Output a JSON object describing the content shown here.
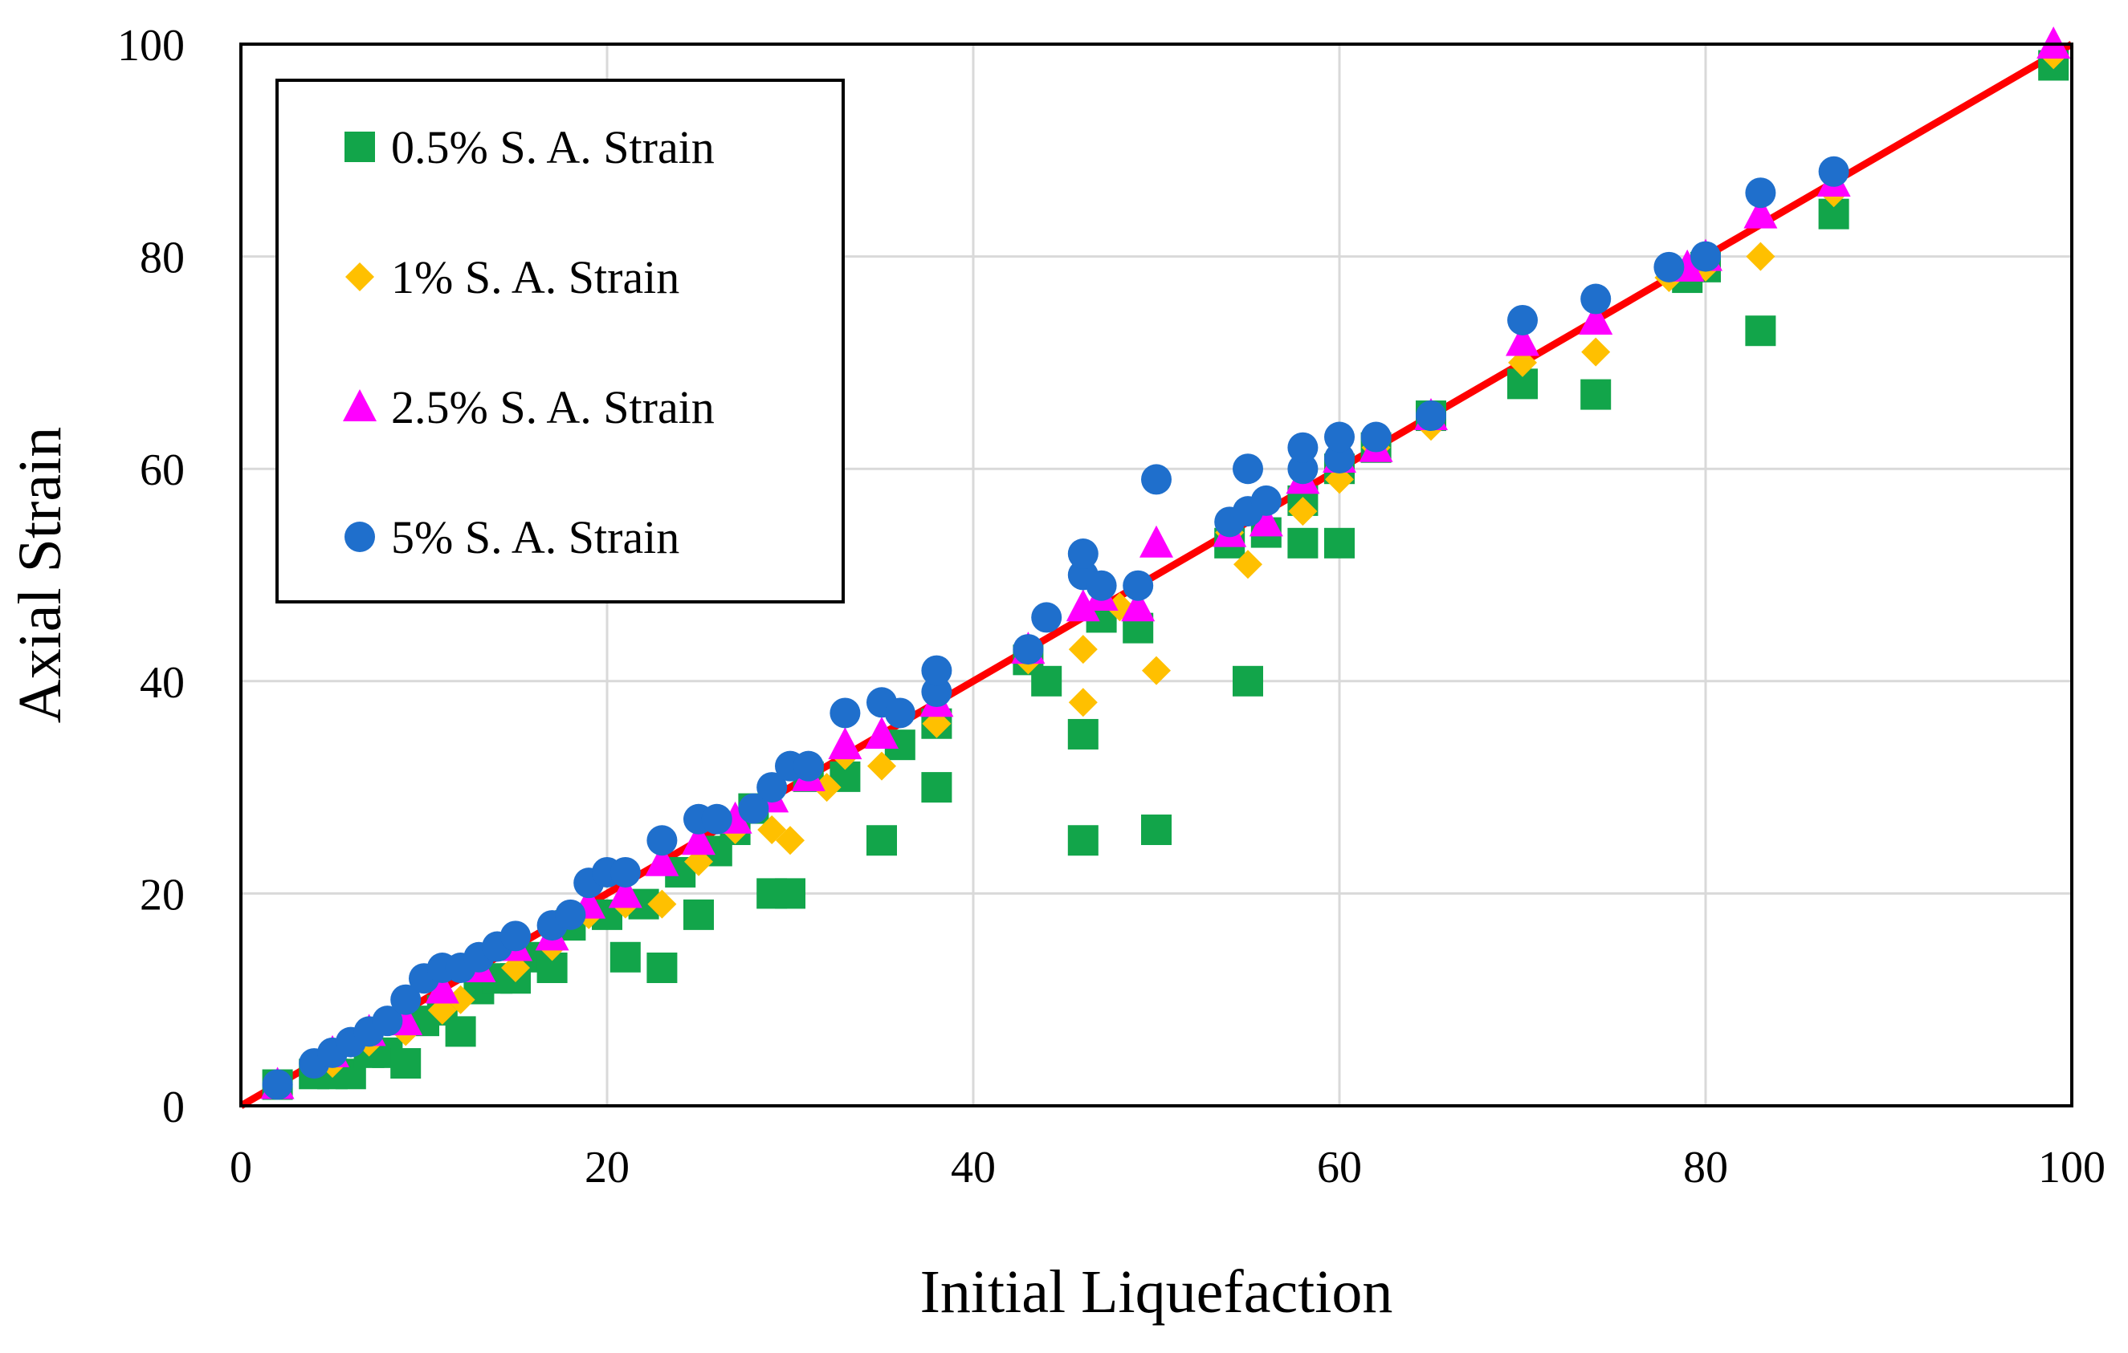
{
  "chart_data": {
    "type": "scatter",
    "title": "",
    "xlabel": "Initial Liquefaction",
    "ylabel": "Axial Strain",
    "xlim": [
      0,
      100
    ],
    "ylim": [
      0,
      100
    ],
    "x_ticks": [
      "0",
      "20",
      "40",
      "60",
      "80",
      "100"
    ],
    "y_ticks": [
      "0",
      "20",
      "40",
      "60",
      "80",
      "100"
    ],
    "grid": true,
    "legend_position": "top-left",
    "reference_line": {
      "name": "1:1 line",
      "x": [
        0,
        100
      ],
      "y": [
        0,
        100
      ],
      "color": "#ff0000"
    },
    "series": [
      {
        "name": "0.5% S. A. Strain",
        "marker": "square",
        "color": "#12a54a",
        "points": [
          [
            2,
            2
          ],
          [
            4,
            3
          ],
          [
            5,
            3
          ],
          [
            6,
            3
          ],
          [
            7,
            5
          ],
          [
            8,
            5
          ],
          [
            9,
            4
          ],
          [
            10,
            8
          ],
          [
            11,
            9
          ],
          [
            12,
            7
          ],
          [
            13,
            11
          ],
          [
            14,
            12
          ],
          [
            15,
            12
          ],
          [
            16,
            14
          ],
          [
            17,
            13
          ],
          [
            18,
            17
          ],
          [
            20,
            18
          ],
          [
            21,
            14
          ],
          [
            22,
            19
          ],
          [
            23,
            13
          ],
          [
            24,
            22
          ],
          [
            25,
            18
          ],
          [
            26,
            24
          ],
          [
            27,
            26
          ],
          [
            28,
            28
          ],
          [
            29,
            20
          ],
          [
            30,
            20
          ],
          [
            31,
            31
          ],
          [
            33,
            31
          ],
          [
            35,
            25
          ],
          [
            36,
            34
          ],
          [
            38,
            30
          ],
          [
            38,
            36
          ],
          [
            43,
            42
          ],
          [
            44,
            40
          ],
          [
            46,
            25
          ],
          [
            46,
            35
          ],
          [
            47,
            46
          ],
          [
            49,
            45
          ],
          [
            50,
            26
          ],
          [
            54,
            53
          ],
          [
            55,
            40
          ],
          [
            56,
            54
          ],
          [
            58,
            53
          ],
          [
            58,
            57
          ],
          [
            60,
            53
          ],
          [
            60,
            60
          ],
          [
            62,
            62
          ],
          [
            65,
            65
          ],
          [
            70,
            68
          ],
          [
            74,
            67
          ],
          [
            79,
            78
          ],
          [
            80,
            79
          ],
          [
            83,
            73
          ],
          [
            87,
            84
          ],
          [
            99,
            98
          ]
        ]
      },
      {
        "name": "1% S. A. Strain",
        "marker": "diamond",
        "color": "#ffc000",
        "points": [
          [
            2,
            2
          ],
          [
            5,
            4
          ],
          [
            7,
            6
          ],
          [
            9,
            7
          ],
          [
            11,
            9
          ],
          [
            12,
            10
          ],
          [
            15,
            13
          ],
          [
            17,
            15
          ],
          [
            19,
            18
          ],
          [
            21,
            19
          ],
          [
            23,
            19
          ],
          [
            25,
            23
          ],
          [
            27,
            26
          ],
          [
            29,
            26
          ],
          [
            30,
            25
          ],
          [
            32,
            30
          ],
          [
            33,
            33
          ],
          [
            35,
            32
          ],
          [
            38,
            36
          ],
          [
            43,
            42
          ],
          [
            46,
            38
          ],
          [
            46,
            43
          ],
          [
            48,
            47
          ],
          [
            50,
            41
          ],
          [
            54,
            54
          ],
          [
            55,
            51
          ],
          [
            58,
            56
          ],
          [
            60,
            59
          ],
          [
            62,
            62
          ],
          [
            65,
            64
          ],
          [
            70,
            70
          ],
          [
            74,
            71
          ],
          [
            78,
            78
          ],
          [
            80,
            79
          ],
          [
            83,
            80
          ],
          [
            87,
            86
          ],
          [
            99,
            99
          ]
        ]
      },
      {
        "name": "2.5% S. A. Strain",
        "marker": "triangle",
        "color": "#ff00ff",
        "points": [
          [
            2,
            2
          ],
          [
            5,
            5
          ],
          [
            7,
            7
          ],
          [
            9,
            8
          ],
          [
            11,
            11
          ],
          [
            13,
            13
          ],
          [
            15,
            15
          ],
          [
            17,
            16
          ],
          [
            19,
            19
          ],
          [
            21,
            20
          ],
          [
            23,
            23
          ],
          [
            25,
            25
          ],
          [
            27,
            27
          ],
          [
            29,
            29
          ],
          [
            31,
            31
          ],
          [
            33,
            34
          ],
          [
            35,
            35
          ],
          [
            38,
            38
          ],
          [
            43,
            43
          ],
          [
            46,
            47
          ],
          [
            47,
            48
          ],
          [
            49,
            47
          ],
          [
            50,
            53
          ],
          [
            54,
            54
          ],
          [
            56,
            55
          ],
          [
            58,
            59
          ],
          [
            60,
            61
          ],
          [
            62,
            62
          ],
          [
            65,
            65
          ],
          [
            70,
            72
          ],
          [
            74,
            74
          ],
          [
            79,
            79
          ],
          [
            80,
            80
          ],
          [
            83,
            84
          ],
          [
            87,
            87
          ],
          [
            99,
            100
          ]
        ]
      },
      {
        "name": "5% S. A. Strain",
        "marker": "circle",
        "color": "#1f6fcc",
        "points": [
          [
            2,
            2
          ],
          [
            4,
            4
          ],
          [
            5,
            5
          ],
          [
            6,
            6
          ],
          [
            7,
            7
          ],
          [
            8,
            8
          ],
          [
            9,
            10
          ],
          [
            10,
            12
          ],
          [
            11,
            13
          ],
          [
            12,
            13
          ],
          [
            13,
            14
          ],
          [
            14,
            15
          ],
          [
            15,
            16
          ],
          [
            17,
            17
          ],
          [
            18,
            18
          ],
          [
            19,
            21
          ],
          [
            20,
            22
          ],
          [
            21,
            22
          ],
          [
            23,
            25
          ],
          [
            25,
            27
          ],
          [
            26,
            27
          ],
          [
            28,
            28
          ],
          [
            29,
            30
          ],
          [
            30,
            32
          ],
          [
            31,
            32
          ],
          [
            33,
            37
          ],
          [
            35,
            38
          ],
          [
            36,
            37
          ],
          [
            38,
            39
          ],
          [
            38,
            41
          ],
          [
            43,
            43
          ],
          [
            44,
            46
          ],
          [
            46,
            50
          ],
          [
            46,
            52
          ],
          [
            47,
            49
          ],
          [
            49,
            49
          ],
          [
            50,
            59
          ],
          [
            54,
            55
          ],
          [
            55,
            56
          ],
          [
            55,
            60
          ],
          [
            56,
            57
          ],
          [
            58,
            60
          ],
          [
            58,
            62
          ],
          [
            60,
            61
          ],
          [
            60,
            63
          ],
          [
            62,
            63
          ],
          [
            65,
            65
          ],
          [
            70,
            74
          ],
          [
            74,
            76
          ],
          [
            78,
            79
          ],
          [
            80,
            80
          ],
          [
            83,
            86
          ],
          [
            87,
            88
          ]
        ]
      }
    ]
  }
}
